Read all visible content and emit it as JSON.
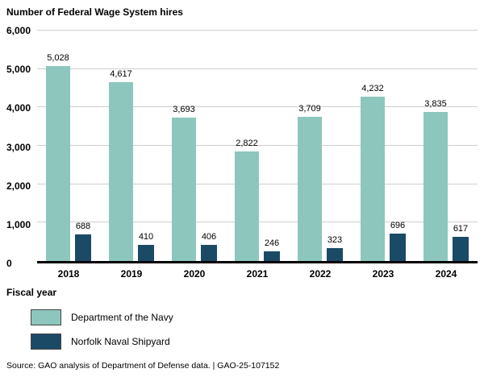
{
  "title": "Number of Federal Wage System hires",
  "x_axis_title": "Fiscal year",
  "source_note": "Source: GAO analysis of Department of Defense data.  |  GAO-25-107152",
  "colors": {
    "navy_series": "#8DC6BD",
    "shipyard_series": "#1B4A67",
    "gridline": "#cfcfcf",
    "axis_line": "#000000"
  },
  "chart_data": {
    "type": "bar",
    "title": "Number of Federal Wage System hires",
    "xlabel": "Fiscal year",
    "ylabel": "Number of Federal Wage System hires",
    "categories": [
      "2018",
      "2019",
      "2020",
      "2021",
      "2022",
      "2023",
      "2024"
    ],
    "series": [
      {
        "name": "Department of the Navy",
        "color": "#8DC6BD",
        "values": [
          5028,
          4617,
          3693,
          2822,
          3709,
          4232,
          3835
        ]
      },
      {
        "name": "Norfolk Naval Shipyard",
        "color": "#1B4A67",
        "values": [
          688,
          410,
          406,
          246,
          323,
          696,
          617
        ]
      }
    ],
    "ylim": [
      0,
      6000
    ],
    "ytick_interval": 1000,
    "grid": true,
    "legend_position": "bottom-left"
  }
}
